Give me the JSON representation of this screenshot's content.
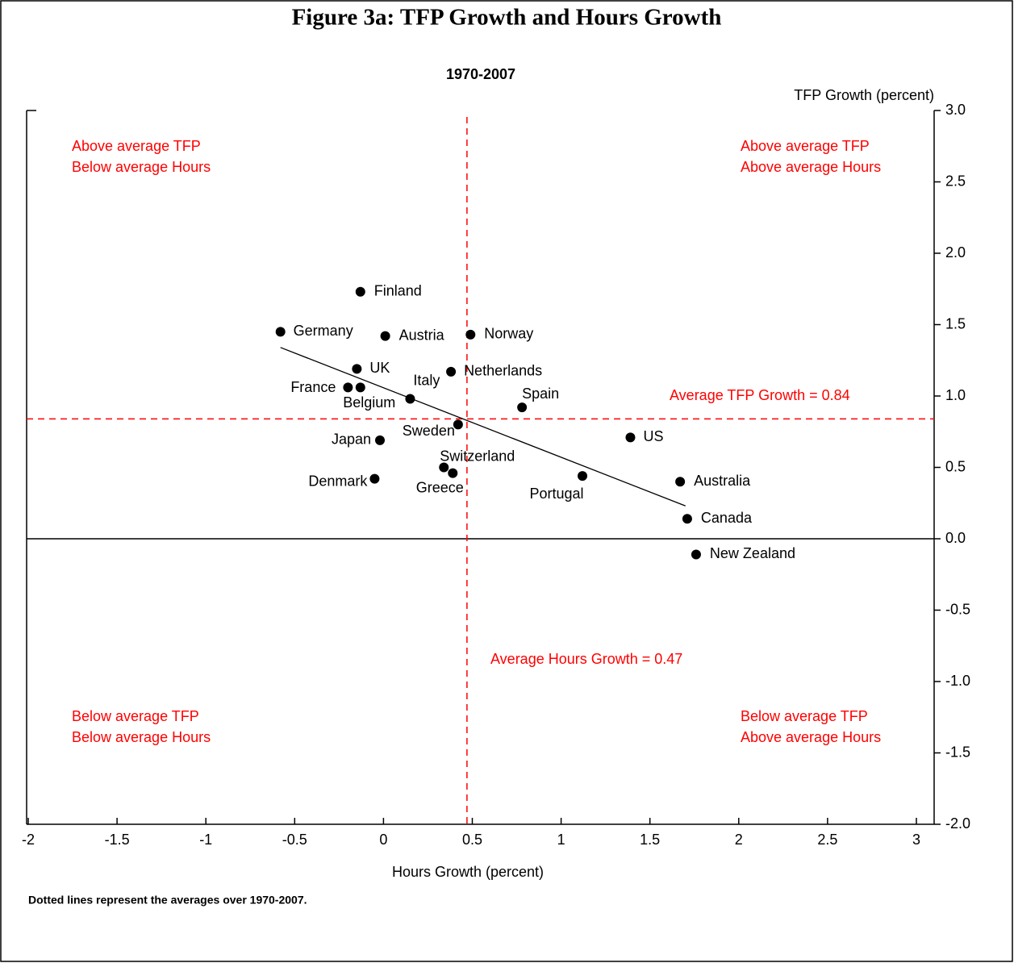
{
  "chart_data": {
    "type": "scatter",
    "title": "Figure 3a: TFP Growth and Hours Growth",
    "subtitle": "1970-2007",
    "y_axis_label": "TFP Growth (percent)",
    "x_axis_label": "Hours Growth (percent)",
    "note": "Dotted lines represent the averages over 1970-2007.",
    "labels": [
      "Finland",
      "Germany",
      "Austria",
      "Norway",
      "UK",
      "Netherlands",
      "France",
      "Belgium",
      "Italy",
      "Spain",
      "Sweden",
      "Japan",
      "US",
      "Switzerland",
      "Greece",
      "Denmark",
      "Portugal",
      "Australia",
      "Canada",
      "New Zealand"
    ],
    "x": [
      -0.13,
      -0.58,
      0.01,
      0.49,
      -0.15,
      0.38,
      -0.2,
      -0.13,
      0.15,
      0.78,
      0.42,
      -0.02,
      1.39,
      0.34,
      0.39,
      -0.05,
      1.12,
      1.67,
      1.71,
      1.76
    ],
    "y": [
      1.73,
      1.45,
      1.42,
      1.43,
      1.19,
      1.17,
      1.06,
      1.06,
      0.98,
      0.92,
      0.8,
      0.69,
      0.71,
      0.5,
      0.46,
      0.42,
      0.44,
      0.4,
      0.14,
      -0.11
    ],
    "color": "#000000",
    "trend_line": {
      "x": [
        -0.58,
        1.7
      ],
      "y": [
        1.34,
        0.23
      ]
    },
    "zero_line": 0,
    "average_x": 0.47,
    "average_y": 0.84,
    "average_color": "#ff0000",
    "average_x_label": "Average Hours Growth = 0.47",
    "average_y_label": "Average TFP Growth = 0.84",
    "quadrant_labels": [
      [
        "Above average TFP",
        "Below average Hours"
      ],
      [
        "Above average TFP",
        "Above average Hours"
      ],
      [
        "Below average TFP",
        "Below average Hours"
      ],
      [
        "Below average TFP",
        "Above average Hours"
      ]
    ],
    "xlim": [
      -2,
      3.1
    ],
    "ylim": [
      -2,
      3
    ],
    "xticks": [
      -2,
      -1.5,
      -1,
      -0.5,
      0,
      0.5,
      1,
      1.5,
      2,
      2.5,
      3
    ],
    "yticks": [
      {
        "value": 3,
        "label": "3.0"
      },
      2.5,
      {
        "value": 2,
        "label": "2.0"
      },
      1.5,
      {
        "value": 1,
        "label": "1.0"
      },
      0.5,
      {
        "value": 0,
        "label": "0.0"
      },
      -0.5,
      {
        "value": -1,
        "label": "-1.0"
      },
      -1.5,
      {
        "value": -2,
        "label": "-2.0"
      }
    ],
    "y_axis_side": "right"
  }
}
